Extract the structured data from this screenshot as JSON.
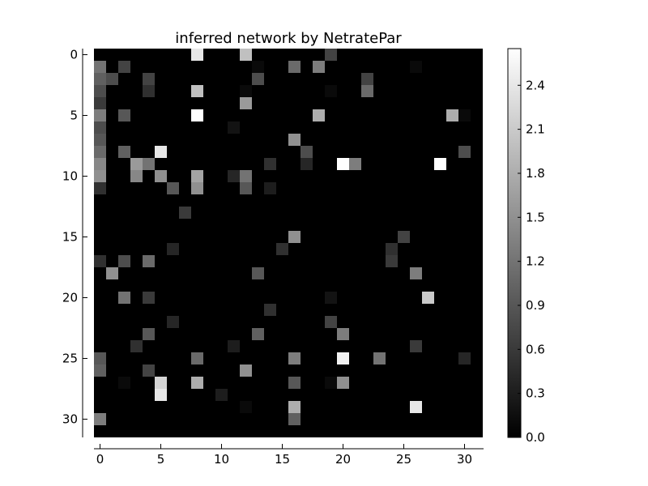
{
  "chart_data": {
    "type": "heatmap",
    "title": "inferred network by NetratePar",
    "xlabel": "",
    "ylabel": "",
    "colormap": "gray",
    "colors": {
      "low": "#000000",
      "high": "#ffffff",
      "axis": "#000000",
      "background": "#ffffff"
    },
    "rows": 32,
    "cols": 32,
    "x_ticks": [
      0,
      5,
      10,
      15,
      20,
      25,
      30
    ],
    "y_ticks": [
      0,
      5,
      10,
      15,
      20,
      25,
      30
    ],
    "x_tick_labels": [
      "0",
      "5",
      "10",
      "15",
      "20",
      "25",
      "30"
    ],
    "y_tick_labels": [
      "0",
      "5",
      "10",
      "15",
      "20",
      "25",
      "30"
    ],
    "colorbar": {
      "vmin": 0.0,
      "vmax": 2.65,
      "ticks": [
        0.0,
        0.3,
        0.6,
        0.9,
        1.2,
        1.5,
        1.8,
        2.1,
        2.4
      ],
      "tick_labels": [
        "0.0",
        "0.3",
        "0.6",
        "0.9",
        "1.2",
        "1.5",
        "1.8",
        "2.1",
        "2.4"
      ]
    },
    "cells": [
      [
        0,
        8,
        2.4
      ],
      [
        0,
        12,
        2.0
      ],
      [
        0,
        19,
        0.7
      ],
      [
        1,
        0,
        1.2
      ],
      [
        1,
        2,
        0.7
      ],
      [
        1,
        13,
        0.1
      ],
      [
        1,
        16,
        1.1
      ],
      [
        1,
        18,
        1.3
      ],
      [
        1,
        26,
        0.1
      ],
      [
        2,
        0,
        1.0
      ],
      [
        2,
        1,
        0.8
      ],
      [
        2,
        4,
        0.7
      ],
      [
        2,
        13,
        0.8
      ],
      [
        2,
        22,
        0.7
      ],
      [
        3,
        0,
        0.8
      ],
      [
        3,
        4,
        0.5
      ],
      [
        3,
        8,
        2.0
      ],
      [
        3,
        12,
        0.1
      ],
      [
        3,
        19,
        0.1
      ],
      [
        3,
        22,
        1.1
      ],
      [
        4,
        0,
        0.6
      ],
      [
        4,
        12,
        1.6
      ],
      [
        5,
        0,
        1.3
      ],
      [
        5,
        2,
        0.9
      ],
      [
        5,
        8,
        2.65
      ],
      [
        5,
        18,
        1.8
      ],
      [
        5,
        29,
        1.8
      ],
      [
        5,
        30,
        0.1
      ],
      [
        6,
        0,
        0.8
      ],
      [
        6,
        11,
        0.2
      ],
      [
        7,
        0,
        0.9
      ],
      [
        7,
        16,
        1.5
      ],
      [
        8,
        0,
        1.1
      ],
      [
        8,
        2,
        1.0
      ],
      [
        8,
        5,
        2.4
      ],
      [
        8,
        17,
        0.8
      ],
      [
        8,
        30,
        0.8
      ],
      [
        9,
        0,
        1.4
      ],
      [
        9,
        3,
        1.6
      ],
      [
        9,
        4,
        1.2
      ],
      [
        9,
        14,
        0.5
      ],
      [
        9,
        17,
        0.4
      ],
      [
        9,
        20,
        2.65
      ],
      [
        9,
        21,
        1.3
      ],
      [
        9,
        28,
        2.65
      ],
      [
        10,
        0,
        1.5
      ],
      [
        10,
        3,
        1.4
      ],
      [
        10,
        5,
        1.5
      ],
      [
        10,
        8,
        1.7
      ],
      [
        10,
        11,
        0.4
      ],
      [
        10,
        12,
        1.2
      ],
      [
        11,
        0,
        0.5
      ],
      [
        11,
        6,
        0.9
      ],
      [
        11,
        8,
        1.5
      ],
      [
        11,
        12,
        0.9
      ],
      [
        11,
        14,
        0.3
      ],
      [
        13,
        7,
        0.6
      ],
      [
        15,
        16,
        1.5
      ],
      [
        15,
        25,
        0.7
      ],
      [
        16,
        6,
        0.4
      ],
      [
        16,
        15,
        0.5
      ],
      [
        16,
        24,
        0.5
      ],
      [
        17,
        0,
        0.5
      ],
      [
        17,
        2,
        0.8
      ],
      [
        17,
        4,
        1.1
      ],
      [
        17,
        24,
        0.6
      ],
      [
        18,
        1,
        1.5
      ],
      [
        18,
        13,
        0.9
      ],
      [
        18,
        26,
        1.3
      ],
      [
        20,
        2,
        1.2
      ],
      [
        20,
        4,
        0.6
      ],
      [
        20,
        19,
        0.2
      ],
      [
        20,
        27,
        2.1
      ],
      [
        21,
        14,
        0.5
      ],
      [
        22,
        6,
        0.4
      ],
      [
        22,
        19,
        0.7
      ],
      [
        23,
        4,
        0.9
      ],
      [
        23,
        13,
        1.0
      ],
      [
        23,
        20,
        1.3
      ],
      [
        24,
        3,
        0.5
      ],
      [
        24,
        11,
        0.3
      ],
      [
        24,
        26,
        0.6
      ],
      [
        25,
        0,
        0.9
      ],
      [
        25,
        8,
        1.1
      ],
      [
        25,
        16,
        1.3
      ],
      [
        25,
        20,
        2.5
      ],
      [
        25,
        23,
        1.2
      ],
      [
        25,
        30,
        0.4
      ],
      [
        26,
        0,
        1.0
      ],
      [
        26,
        4,
        0.7
      ],
      [
        26,
        12,
        1.5
      ],
      [
        27,
        2,
        0.1
      ],
      [
        27,
        5,
        2.2
      ],
      [
        27,
        8,
        1.8
      ],
      [
        27,
        16,
        0.9
      ],
      [
        27,
        19,
        0.1
      ],
      [
        27,
        20,
        1.5
      ],
      [
        28,
        5,
        2.4
      ],
      [
        28,
        10,
        0.3
      ],
      [
        29,
        12,
        0.1
      ],
      [
        29,
        16,
        1.8
      ],
      [
        29,
        26,
        2.4
      ],
      [
        30,
        0,
        1.3
      ],
      [
        30,
        16,
        1.0
      ]
    ]
  }
}
